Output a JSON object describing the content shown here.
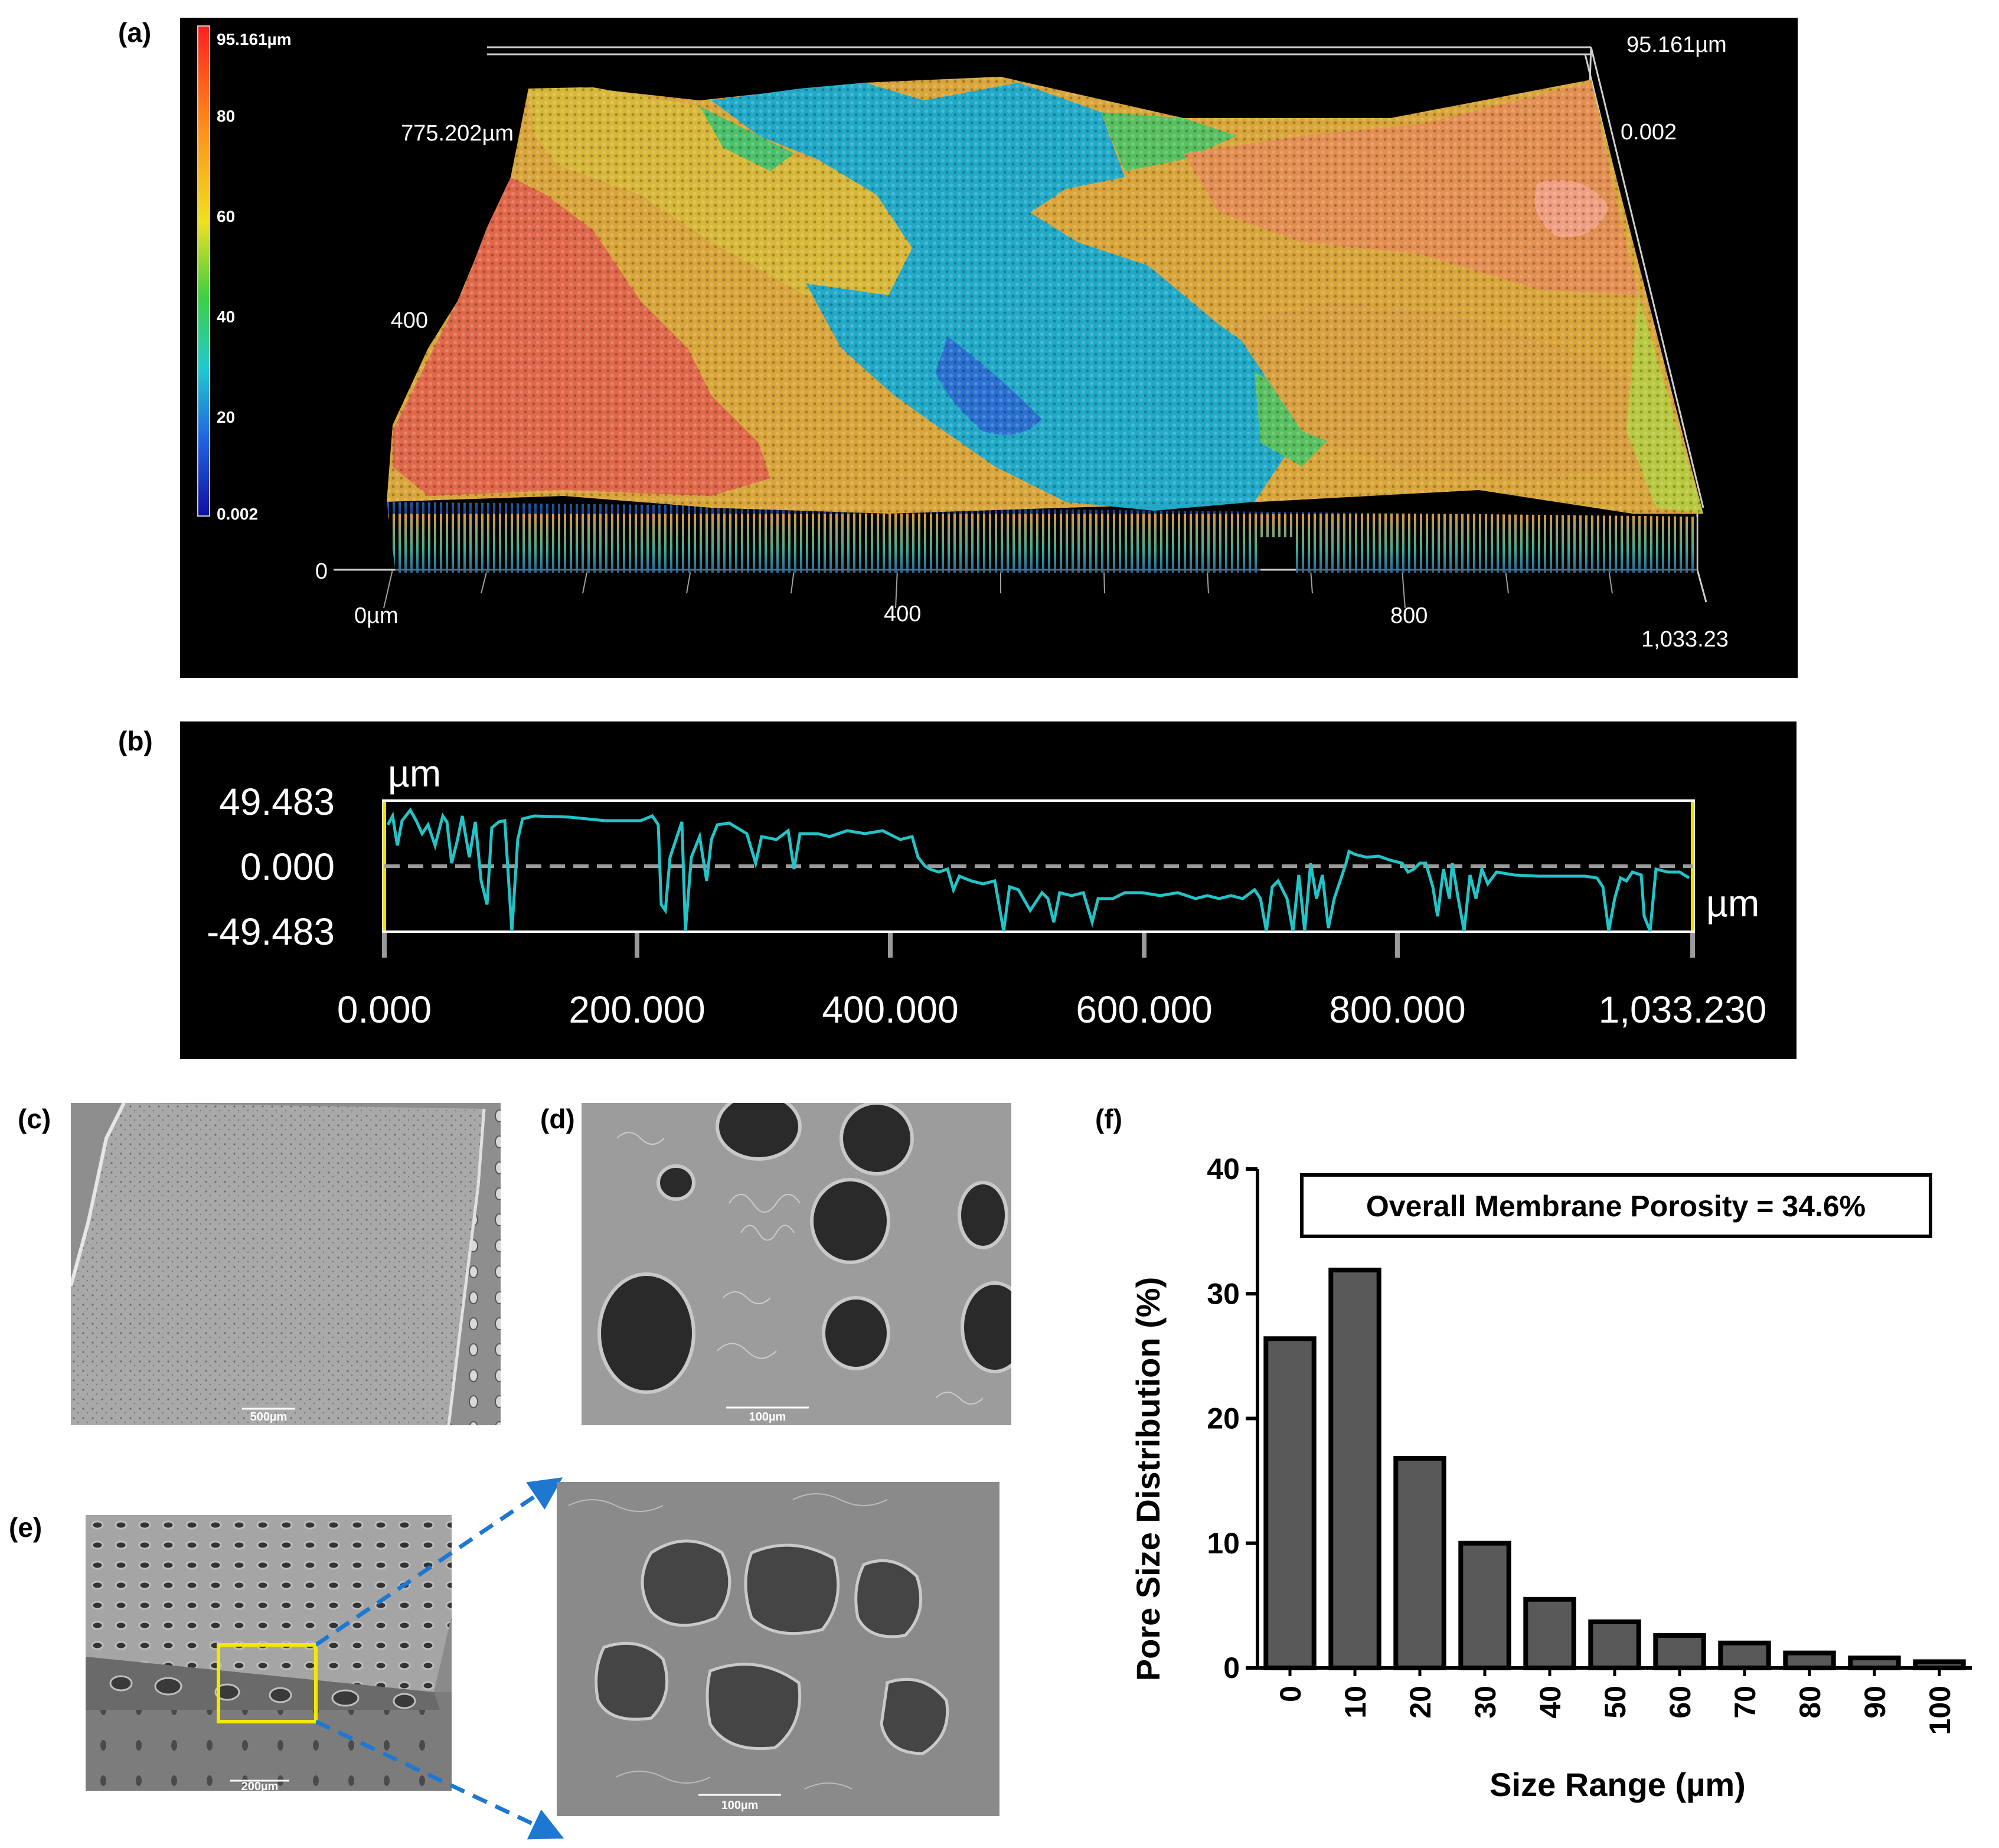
{
  "panels": {
    "a": {
      "letter": "(a)"
    },
    "b": {
      "letter": "(b)"
    },
    "c": {
      "letter": "(c)",
      "scale_bar": "500µm"
    },
    "d": {
      "letter": "(d)",
      "scale_bar": "100µm"
    },
    "e": {
      "letter": "(e)",
      "scale_bar_left": "200µm",
      "scale_bar_right": "100µm"
    },
    "f": {
      "letter": "(f)"
    }
  },
  "colors": {
    "surface_high": "#e86848",
    "surface_mid": "#d8c040",
    "surface_low": "#20b0d0",
    "profile_line": "#22c4c8",
    "bar_fill": "#595959",
    "highlight_box": "#f5e800",
    "zoom_arrow": "#1e78d2"
  },
  "surface3d": {
    "colorbar_ticks": [
      "95.161µm",
      "80",
      "60",
      "40",
      "20",
      "0.002"
    ],
    "z_max_label": "95.161µm",
    "z_min_label": "0.002",
    "y_labels": [
      "775.202µm",
      "400",
      "0"
    ],
    "x_labels": [
      "0µm",
      "400",
      "800",
      "1,033.23"
    ]
  },
  "profile": {
    "y_unit": "µm",
    "x_unit": "µm",
    "y_ticks": [
      "49.483",
      "0.000",
      "-49.483"
    ],
    "x_ticks": [
      "0.000",
      "200.000",
      "400.000",
      "600.000",
      "800.000",
      "1,033.230"
    ],
    "xlim": [
      0,
      1033.23
    ],
    "ylim": [
      -49.483,
      49.483
    ]
  },
  "chart_data": {
    "type": "bar",
    "title": "",
    "annotation": "Overall Membrane Porosity = 34.6%",
    "xlabel": "Size Range (µm)",
    "ylabel": "Pore Size Distribution (%)",
    "categories": [
      "0",
      "10",
      "20",
      "30",
      "40",
      "50",
      "60",
      "70",
      "80",
      "90",
      "100"
    ],
    "values": [
      26.4,
      31.9,
      16.8,
      10.0,
      5.5,
      3.7,
      2.6,
      2.0,
      1.2,
      0.8,
      0.5
    ],
    "ylim": [
      0,
      40
    ],
    "yticks": [
      "0",
      "10",
      "20",
      "30",
      "40"
    ],
    "grid": false,
    "legend": "none"
  }
}
